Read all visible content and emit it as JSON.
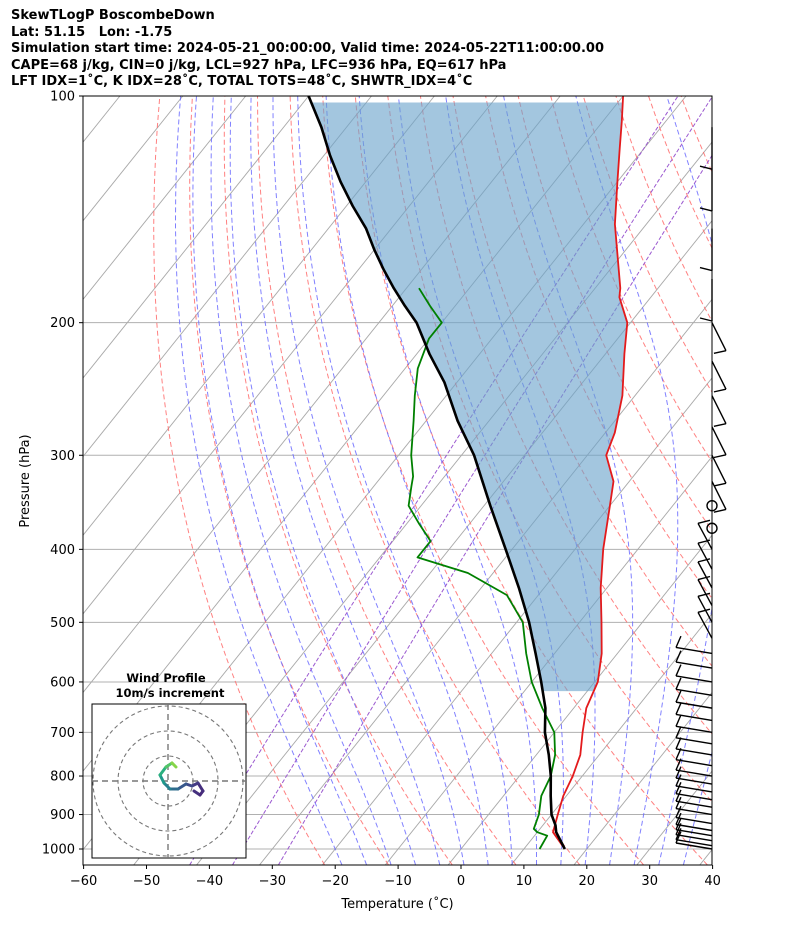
{
  "header": {
    "line1": "SkewTLogP BoscombeDown",
    "line2": "Lat: 51.15   Lon: -1.75",
    "line3": "Simulation start time: 2024-05-21_00:00:00, Valid time: 2024-05-22T11:00:00.00",
    "line4": "CAPE=68 j/kg, CIN=0 j/kg, LCL=927 hPa, LFC=936 hPa, EQ=617 hPa",
    "line5": "LFT IDX=1˚C, K IDX=28˚C, TOTAL TOTS=48˚C, SHWTR_IDX=4˚C"
  },
  "chart_data": {
    "type": "line",
    "title": "SkewTLogP BoscombeDown",
    "xlabel": "Temperature (˚C)",
    "ylabel": "Pressure (hPa)",
    "xlim": [
      -60,
      40
    ],
    "ylim": [
      1050,
      100
    ],
    "y_scale": "log",
    "x_ticks": [
      -60,
      -50,
      -40,
      -30,
      -20,
      -10,
      0,
      10,
      20,
      30,
      40
    ],
    "x_tick_labels": [
      "−60",
      "−50",
      "−40",
      "−30",
      "−20",
      "−10",
      "0",
      "10",
      "20",
      "30",
      "40"
    ],
    "y_ticks": [
      1000,
      900,
      800,
      700,
      600,
      500,
      400,
      300,
      200,
      100
    ],
    "y_tick_labels": [
      "1000",
      "900",
      "800",
      "700",
      "600",
      "500",
      "400",
      "300",
      "200",
      "100"
    ],
    "grid": true,
    "colors": {
      "temperature": "#e31a1c",
      "dewpoint": "#008000",
      "parcel": "#000000",
      "cape_fill": "#6aa3cc",
      "isotherm": "#a9a9a9",
      "dry_adiabat": "#ff6b6b",
      "moist_adiabat": "#6b6bff",
      "mixing_ratio": "#9b59d0"
    },
    "series": [
      {
        "key": "temperature",
        "points": [
          [
            16.5,
            1000
          ],
          [
            12.5,
            950
          ],
          [
            11,
            900
          ],
          [
            9.5,
            850
          ],
          [
            8.5,
            800
          ],
          [
            7,
            750
          ],
          [
            4.5,
            700
          ],
          [
            2,
            650
          ],
          [
            0.5,
            600
          ],
          [
            -2.5,
            550
          ],
          [
            -6.5,
            500
          ],
          [
            -11,
            450
          ],
          [
            -15.5,
            400
          ],
          [
            -20,
            350
          ],
          [
            -22.5,
            325
          ],
          [
            -27,
            300
          ],
          [
            -28.5,
            280
          ],
          [
            -32,
            250
          ],
          [
            -37,
            220
          ],
          [
            -40.5,
            200
          ],
          [
            -45,
            185
          ],
          [
            -46,
            180
          ],
          [
            -50,
            165
          ],
          [
            -55,
            148
          ],
          [
            -60,
            130
          ],
          [
            -64,
            117
          ],
          [
            -67,
            108
          ],
          [
            -70,
            100
          ]
        ]
      },
      {
        "key": "dewpoint",
        "points": [
          [
            12.5,
            1000
          ],
          [
            12,
            960
          ],
          [
            10,
            950
          ],
          [
            9,
            940
          ],
          [
            8,
            900
          ],
          [
            6,
            850
          ],
          [
            5,
            800
          ],
          [
            3,
            750
          ],
          [
            0,
            700
          ],
          [
            -5,
            650
          ],
          [
            -10,
            600
          ],
          [
            -14.5,
            550
          ],
          [
            -19,
            500
          ],
          [
            -25,
            460
          ],
          [
            -34,
            430
          ],
          [
            -44,
            410
          ],
          [
            -44,
            390
          ],
          [
            -48,
            370
          ],
          [
            -52,
            350
          ],
          [
            -54,
            330
          ],
          [
            -55,
            320
          ],
          [
            -58,
            300
          ],
          [
            -62,
            270
          ],
          [
            -65,
            250
          ],
          [
            -68,
            230
          ],
          [
            -70,
            210
          ],
          [
            -70,
            200
          ],
          [
            -74,
            190
          ],
          [
            -78,
            180
          ]
        ]
      },
      {
        "key": "parcel",
        "points": [
          [
            16.5,
            1000
          ],
          [
            13,
            950
          ],
          [
            12,
            930
          ],
          [
            10,
            900
          ],
          [
            7.5,
            850
          ],
          [
            5,
            800
          ],
          [
            2,
            750
          ],
          [
            -1.5,
            700
          ],
          [
            -4.5,
            650
          ],
          [
            -8.5,
            600
          ],
          [
            -13,
            550
          ],
          [
            -18,
            500
          ],
          [
            -24,
            450
          ],
          [
            -31,
            400
          ],
          [
            -39,
            350
          ],
          [
            -48,
            300
          ],
          [
            -55,
            270
          ],
          [
            -62,
            240
          ],
          [
            -68,
            220
          ],
          [
            -74,
            200
          ],
          [
            -78,
            190
          ],
          [
            -82,
            180
          ],
          [
            -86,
            170
          ],
          [
            -90,
            160
          ],
          [
            -94,
            150
          ],
          [
            -99,
            140
          ],
          [
            -104,
            130
          ],
          [
            -109,
            120
          ],
          [
            -114,
            110
          ],
          [
            -120,
            100
          ]
        ]
      }
    ],
    "cape_fill": {
      "region": "between parcel and temperature",
      "from_hpa": 617,
      "to_hpa": 100
    },
    "wind_barbs": {
      "pressures_hpa": [
        1000,
        990,
        975,
        960,
        945,
        925,
        900,
        880,
        860,
        840,
        820,
        800,
        775,
        750,
        725,
        700,
        675,
        650,
        625,
        600,
        575,
        550,
        525,
        500,
        475,
        450,
        425,
        400,
        375,
        350,
        325,
        300,
        275,
        250,
        225,
        200,
        175,
        150,
        125,
        110
      ]
    },
    "inset": {
      "title_line1": "Wind Profile",
      "title_line2": "10m/s increment",
      "type": "hodograph",
      "rings_ms": [
        10,
        20,
        30
      ]
    }
  }
}
